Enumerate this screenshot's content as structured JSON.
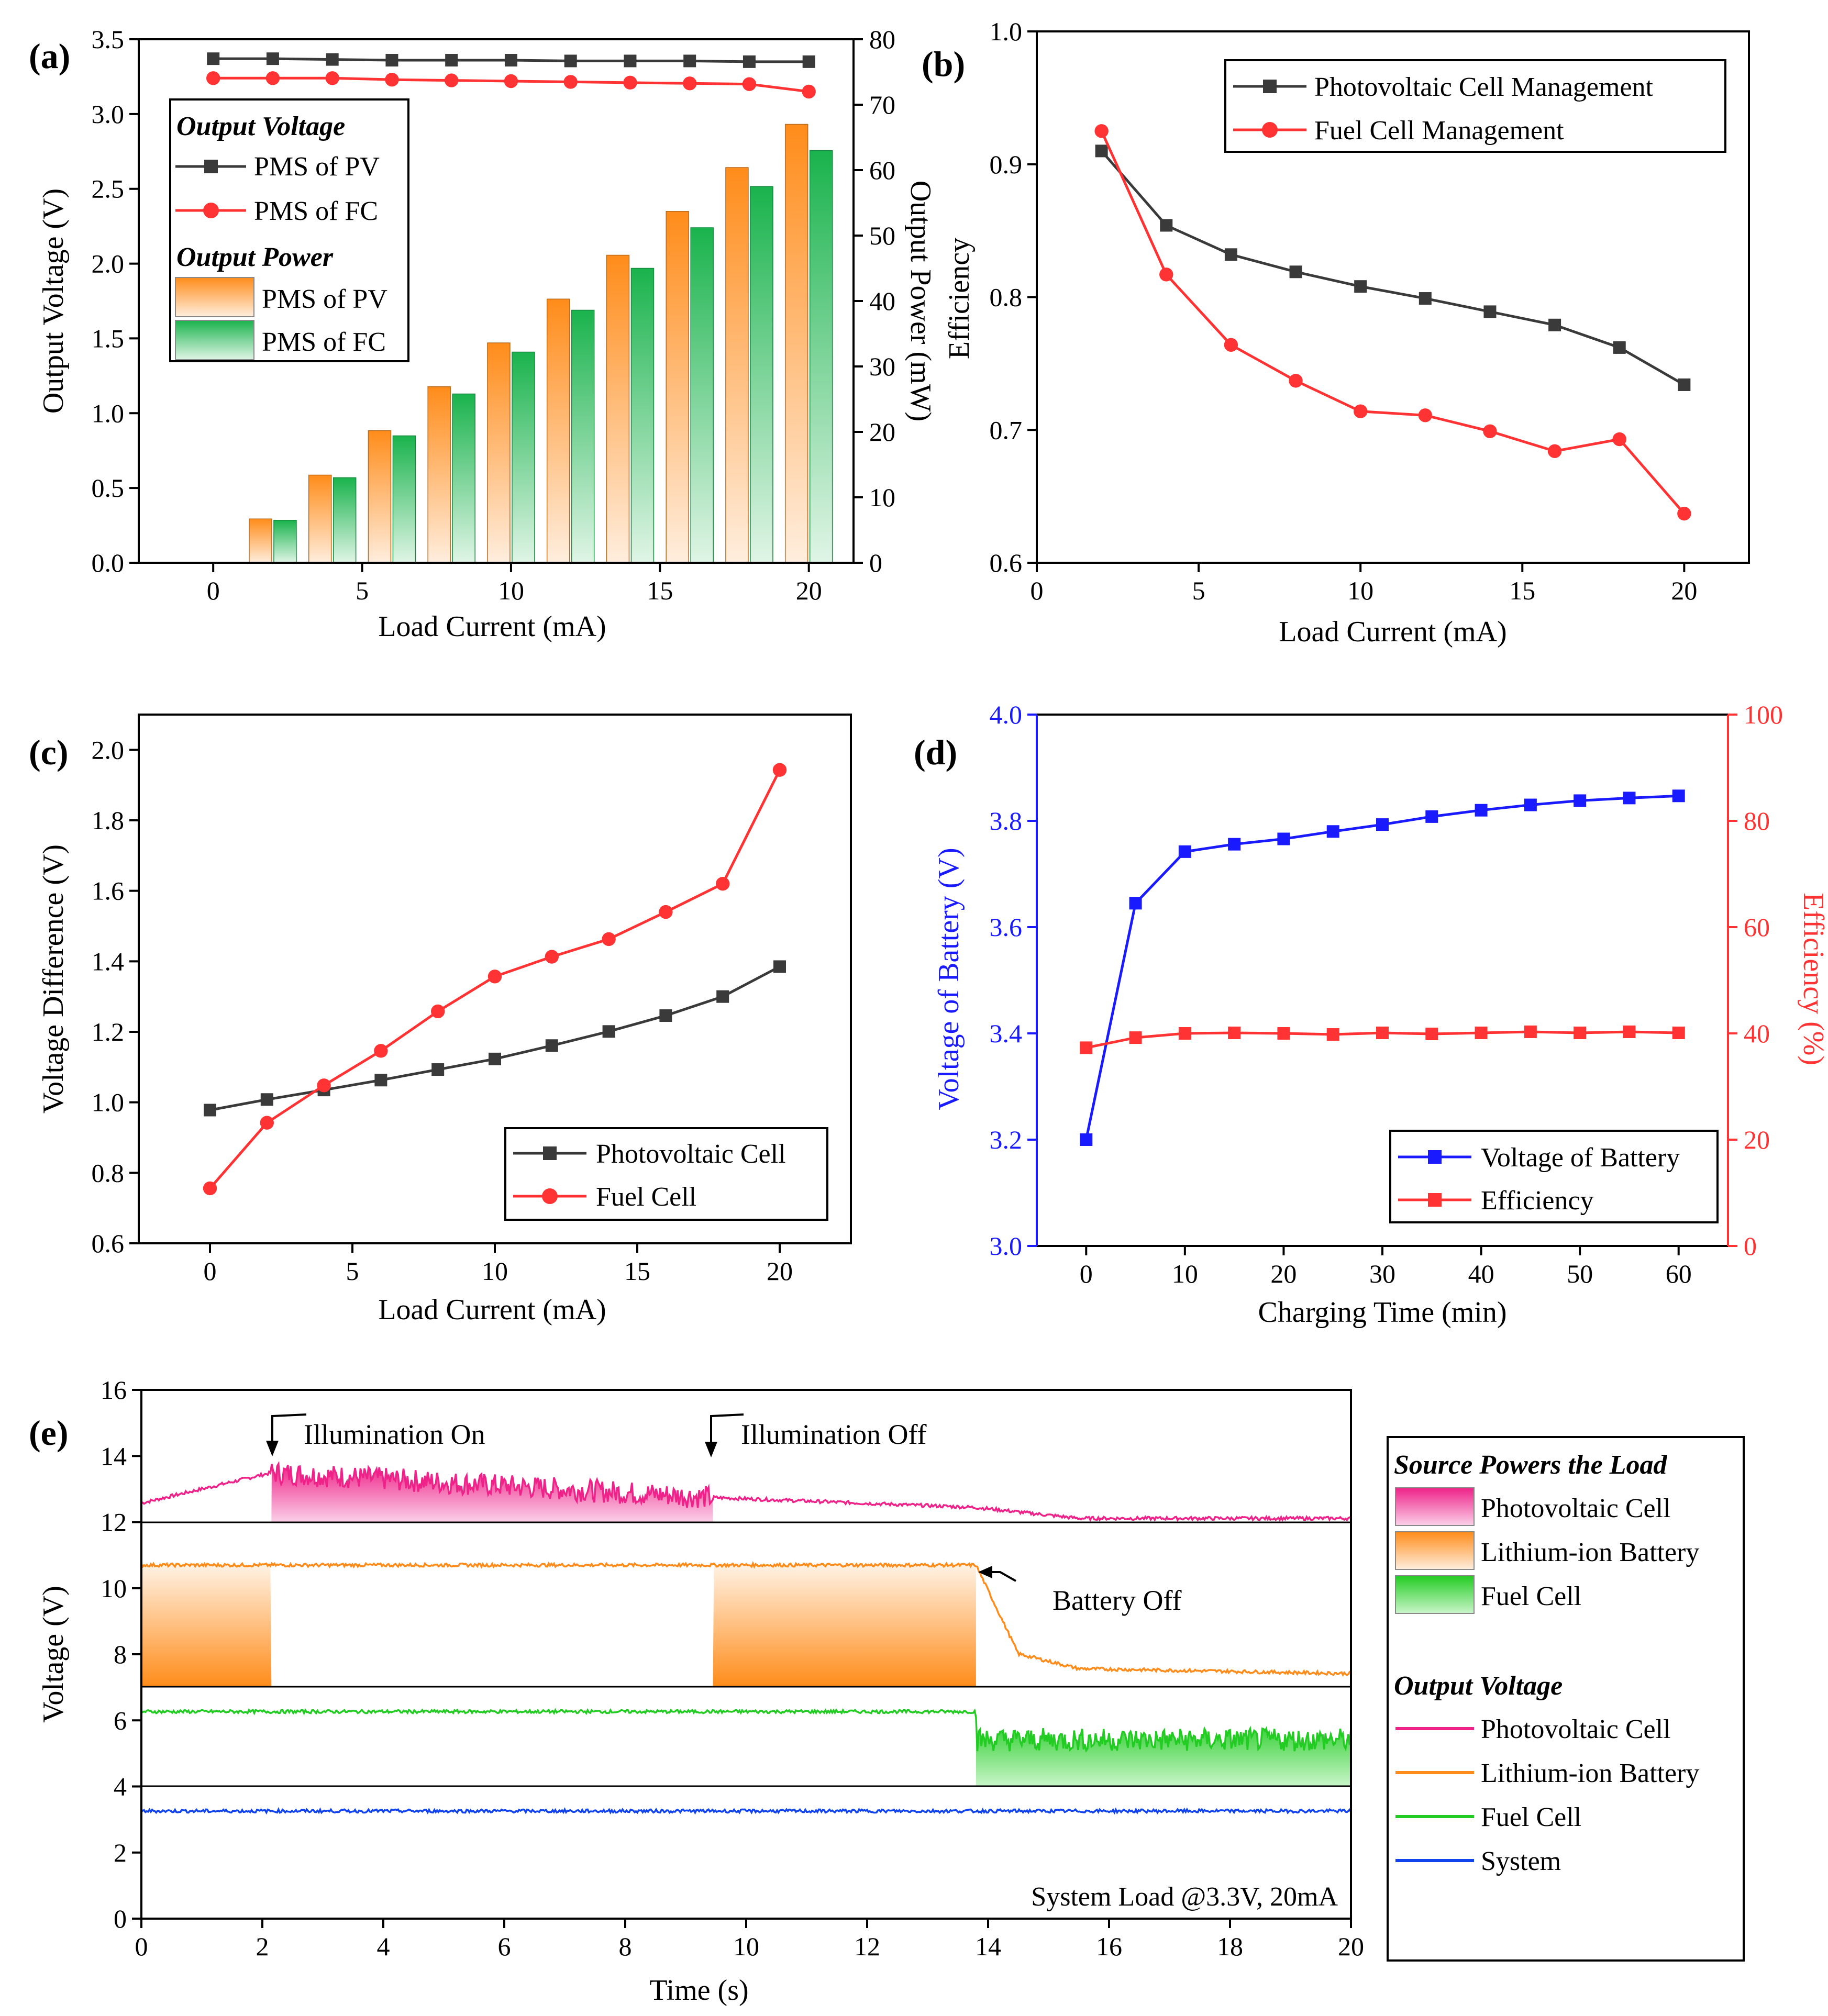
{
  "colors": {
    "black": "#3a3a3a",
    "red": "#ff3333",
    "blue": "#1a1aff",
    "orange": "#ff8c1a",
    "green": "#1ab34d",
    "pink": "#ee2288",
    "lime": "#22cc22",
    "sysblue": "#1144ee"
  },
  "chart_data": [
    {
      "id": "a",
      "panel_label": "(a)",
      "type": "bar",
      "xlabel": "Load Current (mA)",
      "ylabel": "Output Voltage (V)",
      "y2label": "Output Power (mW)",
      "xlim": [
        -2.5,
        21.5
      ],
      "ylim": [
        0,
        3.5
      ],
      "y2lim": [
        0,
        80
      ],
      "xticks": [
        "0",
        "5",
        "10",
        "15",
        "20"
      ],
      "yticks": [
        "0.0",
        "0.5",
        "1.0",
        "1.5",
        "2.0",
        "2.5",
        "3.0",
        "3.5"
      ],
      "y2ticks": [
        "0",
        "10",
        "20",
        "30",
        "40",
        "50",
        "60",
        "70",
        "80"
      ],
      "x": [
        0,
        2,
        4,
        6,
        8,
        10,
        12,
        14,
        16,
        18,
        20
      ],
      "series": [
        {
          "name": "PMS of PV",
          "group": "Output Voltage",
          "kind": "line",
          "marker": "square",
          "color": "#3a3a3a",
          "values": [
            3.37,
            3.37,
            3.365,
            3.36,
            3.36,
            3.36,
            3.355,
            3.355,
            3.355,
            3.35,
            3.35
          ]
        },
        {
          "name": "PMS of FC",
          "group": "Output Voltage",
          "kind": "line",
          "marker": "circle",
          "color": "#ff3333",
          "values": [
            3.24,
            3.24,
            3.24,
            3.23,
            3.225,
            3.22,
            3.215,
            3.21,
            3.205,
            3.2,
            3.15
          ]
        },
        {
          "name": "PMS of PV",
          "group": "Output Power",
          "kind": "bar",
          "color": "#ff8c1a",
          "x": [
            2,
            4,
            6,
            8,
            10,
            12,
            14,
            16,
            18,
            20
          ],
          "values": [
            6.7,
            13.4,
            20.2,
            26.9,
            33.6,
            40.3,
            47.0,
            53.7,
            60.4,
            67.0
          ]
        },
        {
          "name": "PMS of FC",
          "group": "Output Power",
          "kind": "bar",
          "color": "#1ab34d",
          "x": [
            2,
            4,
            6,
            8,
            10,
            12,
            14,
            16,
            18,
            20
          ],
          "values": [
            6.5,
            13.0,
            19.4,
            25.8,
            32.2,
            38.6,
            45.0,
            51.2,
            57.5,
            63.0
          ]
        }
      ],
      "legend": {
        "voltage_header": "Output Voltage",
        "power_header": "Output Power",
        "items": [
          "PMS of PV",
          "PMS of FC",
          "PMS of PV",
          "PMS of FC"
        ]
      }
    },
    {
      "id": "b",
      "panel_label": "(b)",
      "type": "line",
      "xlabel": "Load Current (mA)",
      "ylabel": "Efficiency",
      "xlim": [
        0,
        22
      ],
      "ylim": [
        0.6,
        1.0
      ],
      "xticks": [
        "0",
        "5",
        "10",
        "15",
        "20"
      ],
      "yticks": [
        "0.6",
        "0.7",
        "0.8",
        "0.9",
        "1.0"
      ],
      "x": [
        2,
        4,
        6,
        8,
        10,
        12,
        14,
        16,
        18,
        20
      ],
      "series": [
        {
          "name": "Photovoltaic Cell Management",
          "marker": "square",
          "color": "#3a3a3a",
          "values": [
            0.91,
            0.854,
            0.832,
            0.819,
            0.808,
            0.799,
            0.789,
            0.779,
            0.762,
            0.734
          ]
        },
        {
          "name": "Fuel Cell Management",
          "marker": "circle",
          "color": "#ff3333",
          "values": [
            0.925,
            0.817,
            0.764,
            0.737,
            0.714,
            0.711,
            0.699,
            0.684,
            0.693,
            0.637
          ]
        }
      ]
    },
    {
      "id": "c",
      "panel_label": "(c)",
      "type": "line",
      "xlabel": "Load Current (mA)",
      "ylabel": "Voltage Difference (V)",
      "xlim": [
        -2.5,
        22.5
      ],
      "ylim": [
        0.6,
        2.1
      ],
      "xticks": [
        "0",
        "5",
        "10",
        "15",
        "20"
      ],
      "yticks": [
        "0.6",
        "0.8",
        "1.0",
        "1.2",
        "1.4",
        "1.6",
        "1.8",
        "2.0"
      ],
      "x": [
        0,
        2,
        4,
        6,
        8,
        10,
        12,
        14,
        16,
        18,
        20
      ],
      "series": [
        {
          "name": "Photovoltaic Cell",
          "marker": "square",
          "color": "#3a3a3a",
          "values": [
            0.978,
            1.008,
            1.035,
            1.063,
            1.093,
            1.123,
            1.161,
            1.201,
            1.246,
            1.3,
            1.385
          ]
        },
        {
          "name": "Fuel Cell",
          "marker": "circle",
          "color": "#ff3333",
          "values": [
            0.756,
            0.942,
            1.048,
            1.146,
            1.258,
            1.357,
            1.413,
            1.463,
            1.54,
            1.62,
            1.943
          ]
        }
      ]
    },
    {
      "id": "d",
      "panel_label": "(d)",
      "type": "line",
      "xlabel": "Charging Time (min)",
      "ylabel": "Voltage of Battery (V)",
      "y2label": "Efficiency (%)",
      "xlim": [
        -5,
        65
      ],
      "ylim": [
        3.0,
        4.0
      ],
      "y2lim": [
        0,
        100
      ],
      "xticks": [
        "0",
        "10",
        "20",
        "30",
        "40",
        "50",
        "60"
      ],
      "yticks": [
        "3.0",
        "3.2",
        "3.4",
        "3.6",
        "3.8",
        "4.0"
      ],
      "y2ticks": [
        "0",
        "20",
        "40",
        "60",
        "80",
        "100"
      ],
      "x": [
        0,
        5,
        10,
        15,
        20,
        25,
        30,
        35,
        40,
        45,
        50,
        55,
        60
      ],
      "series": [
        {
          "name": "Voltage of Battery",
          "marker": "square",
          "color": "#1a1aff",
          "axis": "left",
          "values": [
            3.2,
            3.645,
            3.742,
            3.756,
            3.766,
            3.78,
            3.793,
            3.808,
            3.82,
            3.83,
            3.838,
            3.843,
            3.847
          ]
        },
        {
          "name": "Efficiency",
          "marker": "square",
          "color": "#ff3333",
          "axis": "right",
          "values": [
            37.3,
            39.2,
            40.0,
            40.1,
            40.0,
            39.8,
            40.1,
            39.9,
            40.1,
            40.3,
            40.1,
            40.3,
            40.1
          ]
        }
      ]
    },
    {
      "id": "e",
      "panel_label": "(e)",
      "type": "line",
      "xlabel": "Time (s)",
      "ylabel": "Voltage (V)",
      "xlim": [
        0,
        20
      ],
      "xticks": [
        "0",
        "2",
        "4",
        "6",
        "8",
        "10",
        "12",
        "14",
        "16",
        "18",
        "20"
      ],
      "yticks": [
        "0",
        "2",
        "4",
        "6",
        "8",
        "10",
        "12",
        "14",
        "16"
      ],
      "sub_panels": [
        {
          "name": "Photovoltaic Cell",
          "ylim": [
            12,
            16
          ],
          "color": "#ee2288",
          "levels": [
            [
              0,
              12.58
            ],
            [
              2.15,
              13.5
            ],
            [
              9.45,
              12.75
            ],
            [
              13.8,
              12.45
            ],
            [
              15.5,
              12.12
            ],
            [
              20,
              12.12
            ]
          ],
          "shaded": [
            [
              2.15,
              9.45
            ]
          ]
        },
        {
          "name": "Lithium-ion Battery",
          "ylim": [
            7,
            12
          ],
          "color": "#ff8c1a",
          "levels": [
            [
              0,
              10.7
            ],
            [
              13.8,
              10.7
            ],
            [
              14.5,
              8.0
            ],
            [
              15.5,
              7.55
            ],
            [
              20,
              7.4
            ]
          ],
          "shaded": [
            [
              0,
              2.15
            ],
            [
              9.45,
              13.8
            ]
          ]
        },
        {
          "name": "Fuel Cell",
          "ylim": [
            4,
            7
          ],
          "color": "#22cc22",
          "levels": [
            [
              0,
              6.25
            ],
            [
              13.8,
              6.25
            ],
            [
              13.8,
              5.4
            ],
            [
              20,
              5.4
            ]
          ],
          "shaded": [
            [
              13.8,
              20
            ]
          ]
        },
        {
          "name": "System",
          "ylim": [
            0,
            4
          ],
          "color": "#1144ee",
          "levels": [
            [
              0,
              3.25
            ],
            [
              20,
              3.25
            ]
          ]
        }
      ],
      "annotations": [
        "Illumination On",
        "Illumination Off",
        "Battery Off",
        "System Load @3.3V, 20mA"
      ],
      "legend": {
        "source_header": "Source Powers the Load",
        "source_items": [
          "Photovoltaic Cell",
          "Lithium-ion Battery",
          "Fuel Cell"
        ],
        "output_header": "Output Voltage",
        "output_items": [
          "Photovoltaic Cell",
          "Lithium-ion Battery",
          "Fuel Cell",
          "System"
        ]
      }
    }
  ]
}
